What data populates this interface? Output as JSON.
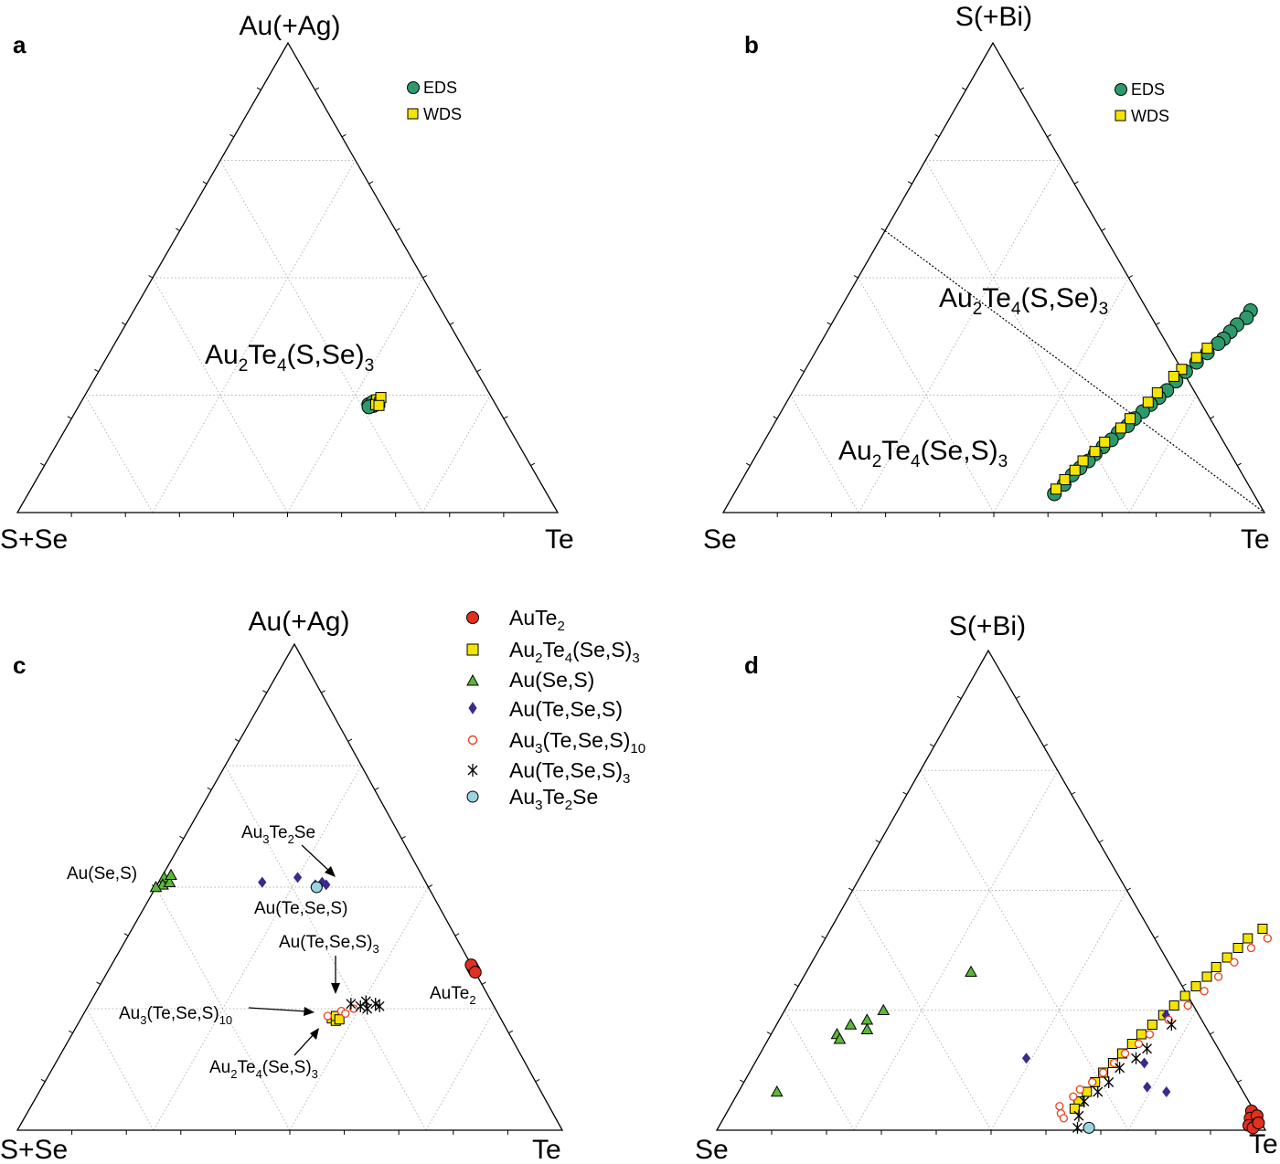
{
  "panels": {
    "a": {
      "label": "a",
      "vertices": {
        "top": "Au(+Ag)",
        "left": "S+Se",
        "right": "Te"
      },
      "annotation": {
        "base": "Au",
        "s1": "2",
        "mid": "Te",
        "s2": "4",
        "tail": "(S,Se)",
        "s3": "3"
      },
      "legend": [
        "EDS",
        "WDS"
      ]
    },
    "b": {
      "label": "b",
      "vertices": {
        "top": "S(+Bi)",
        "left": "Se",
        "right": "Te"
      },
      "annotations": [
        {
          "base": "Au",
          "s1": "2",
          "mid": "Te",
          "s2": "4",
          "tail": "(S,Se)",
          "s3": "3"
        },
        {
          "base": "Au",
          "s1": "2",
          "mid": "Te",
          "s2": "4",
          "tail": "(Se,S)",
          "s3": "3"
        }
      ],
      "legend": [
        "EDS",
        "WDS"
      ]
    },
    "c": {
      "label": "c",
      "vertices": {
        "top": "Au(+Ag)",
        "left": "S+Se",
        "right": "Te"
      },
      "annotations": {
        "au3te2se": "Au3Te2Se",
        "ause_s": "Au(Se,S)",
        "au_te_se_s": "Au(Te,Se,S)",
        "au_te_se_s_3": "Au(Te,Se,S)3",
        "aute2": "AuTe2",
        "au3_te_se_s_10": "Au3(Te,Se,S)10",
        "au2te4_se_s_3": "Au2Te4(Se,S)3"
      }
    },
    "d": {
      "label": "d",
      "vertices": {
        "top": "S(+Bi)",
        "left": "Se",
        "right": "Te"
      }
    }
  },
  "legend_c": [
    "AuTe2",
    "Au2Te4(Se,S)3",
    "Au(Se,S)",
    "Au(Te,Se,S)",
    "Au3(Te,Se,S)10",
    "Au(Te,Se,S)3",
    "Au3Te2Se"
  ],
  "colors": {
    "eds": "#2e9a6b",
    "wds": "#f5e400",
    "aute2": "#e0301e",
    "au_se_s": "#5cb83a",
    "au_te_se_s": "#3c2a8a",
    "au3_10": "#e8401c",
    "au3te2se": "#9ad4de"
  },
  "chart_data": [
    {
      "type": "scatter",
      "panel": "a",
      "plot": "ternary",
      "axes": {
        "top": "Au(+Ag)",
        "left": "S+Se",
        "right": "Te"
      },
      "series": [
        {
          "name": "EDS",
          "points": [
            {
              "top": 0.23,
              "right": 0.535
            },
            {
              "top": 0.235,
              "right": 0.54
            },
            {
              "top": 0.228,
              "right": 0.545
            },
            {
              "top": 0.232,
              "right": 0.55
            },
            {
              "top": 0.225,
              "right": 0.538
            },
            {
              "top": 0.238,
              "right": 0.548
            }
          ]
        },
        {
          "name": "WDS",
          "points": [
            {
              "top": 0.24,
              "right": 0.545
            },
            {
              "top": 0.235,
              "right": 0.553
            },
            {
              "top": 0.23,
              "right": 0.548
            },
            {
              "top": 0.245,
              "right": 0.55
            },
            {
              "top": 0.228,
              "right": 0.555
            }
          ]
        }
      ]
    },
    {
      "type": "scatter",
      "panel": "b",
      "plot": "ternary",
      "axes": {
        "top": "S(+Bi)",
        "left": "Se",
        "right": "Te"
      },
      "series": [
        {
          "name": "EDS",
          "points": [
            {
              "top": 0.43,
              "right": 0.76
            },
            {
              "top": 0.415,
              "right": 0.76
            },
            {
              "top": 0.4,
              "right": 0.75
            },
            {
              "top": 0.385,
              "right": 0.745
            },
            {
              "top": 0.37,
              "right": 0.74
            },
            {
              "top": 0.36,
              "right": 0.735
            },
            {
              "top": 0.34,
              "right": 0.725
            },
            {
              "top": 0.32,
              "right": 0.715
            },
            {
              "top": 0.3,
              "right": 0.705
            },
            {
              "top": 0.28,
              "right": 0.697
            },
            {
              "top": 0.26,
              "right": 0.69
            },
            {
              "top": 0.245,
              "right": 0.683
            },
            {
              "top": 0.23,
              "right": 0.675
            },
            {
              "top": 0.215,
              "right": 0.668
            },
            {
              "top": 0.2,
              "right": 0.66
            },
            {
              "top": 0.185,
              "right": 0.655
            },
            {
              "top": 0.17,
              "right": 0.645
            },
            {
              "top": 0.155,
              "right": 0.64
            },
            {
              "top": 0.14,
              "right": 0.632
            },
            {
              "top": 0.125,
              "right": 0.625
            },
            {
              "top": 0.11,
              "right": 0.62
            },
            {
              "top": 0.095,
              "right": 0.612
            },
            {
              "top": 0.08,
              "right": 0.605
            },
            {
              "top": 0.06,
              "right": 0.6
            },
            {
              "top": 0.04,
              "right": 0.592
            }
          ]
        },
        {
          "name": "WDS",
          "points": [
            {
              "top": 0.35,
              "right": 0.72
            },
            {
              "top": 0.33,
              "right": 0.71
            },
            {
              "top": 0.305,
              "right": 0.695
            },
            {
              "top": 0.29,
              "right": 0.688
            },
            {
              "top": 0.255,
              "right": 0.675
            },
            {
              "top": 0.235,
              "right": 0.668
            },
            {
              "top": 0.2,
              "right": 0.652
            },
            {
              "top": 0.18,
              "right": 0.645
            },
            {
              "top": 0.15,
              "right": 0.63
            },
            {
              "top": 0.13,
              "right": 0.622
            },
            {
              "top": 0.11,
              "right": 0.61
            },
            {
              "top": 0.09,
              "right": 0.605
            },
            {
              "top": 0.07,
              "right": 0.596
            },
            {
              "top": 0.05,
              "right": 0.59
            }
          ]
        }
      ],
      "reference_line": {
        "from": {
          "top": 0.6,
          "right": 0.0
        },
        "to": {
          "top": 0.0,
          "right": 1.0
        }
      }
    },
    {
      "type": "scatter",
      "panel": "c",
      "plot": "ternary",
      "axes": {
        "top": "Au(+Ag)",
        "left": "S+Se",
        "right": "Te"
      },
      "series": [
        {
          "name": "AuTe2",
          "points": [
            {
              "top": 0.335,
              "right": 0.665
            },
            {
              "top": 0.33,
              "right": 0.67
            },
            {
              "top": 0.34,
              "right": 0.66
            },
            {
              "top": 0.325,
              "right": 0.675
            }
          ]
        },
        {
          "name": "Au2Te4(Se,S)3",
          "points": [
            {
              "top": 0.23,
              "right": 0.46
            },
            {
              "top": 0.225,
              "right": 0.47
            },
            {
              "top": 0.235,
              "right": 0.465
            },
            {
              "top": 0.228,
              "right": 0.475
            }
          ]
        },
        {
          "name": "Au(Se,S)",
          "points": [
            {
              "top": 0.52,
              "right": 0.005
            },
            {
              "top": 0.505,
              "right": 0.01
            },
            {
              "top": 0.51,
              "right": 0.02
            },
            {
              "top": 0.525,
              "right": 0.015
            },
            {
              "top": 0.5,
              "right": 0.0
            }
          ]
        },
        {
          "name": "Au(Te,Se,S)",
          "points": [
            {
              "top": 0.51,
              "right": 0.19
            },
            {
              "top": 0.52,
              "right": 0.25
            },
            {
              "top": 0.505,
              "right": 0.29
            },
            {
              "top": 0.51,
              "right": 0.3
            },
            {
              "top": 0.505,
              "right": 0.31
            }
          ]
        },
        {
          "name": "Au3(Te,Se,S)10",
          "points": [
            {
              "top": 0.235,
              "right": 0.45
            },
            {
              "top": 0.245,
              "right": 0.47
            },
            {
              "top": 0.24,
              "right": 0.48
            },
            {
              "top": 0.25,
              "right": 0.49
            }
          ]
        },
        {
          "name": "Au(Te,Se,S)3",
          "points": [
            {
              "top": 0.26,
              "right": 0.48
            },
            {
              "top": 0.255,
              "right": 0.5
            },
            {
              "top": 0.265,
              "right": 0.505
            },
            {
              "top": 0.25,
              "right": 0.515
            },
            {
              "top": 0.26,
              "right": 0.525
            },
            {
              "top": 0.255,
              "right": 0.535
            }
          ]
        },
        {
          "name": "Au3Te2Se",
          "points": [
            {
              "top": 0.5,
              "right": 0.295
            }
          ]
        }
      ]
    },
    {
      "type": "scatter",
      "panel": "d",
      "plot": "ternary",
      "axes": {
        "top": "S(+Bi)",
        "left": "Se",
        "right": "Te"
      },
      "series": [
        {
          "name": "AuTe2",
          "points": [
            {
              "top": 0.04,
              "right": 0.955
            },
            {
              "top": 0.025,
              "right": 0.96
            },
            {
              "top": 0.01,
              "right": 0.965
            },
            {
              "top": 0.005,
              "right": 0.975
            },
            {
              "top": 0.03,
              "right": 0.97
            },
            {
              "top": 0.015,
              "right": 0.98
            }
          ]
        },
        {
          "name": "Au2Te4(Se,S)3",
          "points": [
            {
              "top": 0.42,
              "right": 0.787
            },
            {
              "top": 0.4,
              "right": 0.77
            },
            {
              "top": 0.38,
              "right": 0.762
            },
            {
              "top": 0.36,
              "right": 0.752
            },
            {
              "top": 0.34,
              "right": 0.742
            },
            {
              "top": 0.32,
              "right": 0.735
            },
            {
              "top": 0.3,
              "right": 0.725
            },
            {
              "top": 0.28,
              "right": 0.715
            },
            {
              "top": 0.26,
              "right": 0.705
            },
            {
              "top": 0.24,
              "right": 0.695
            },
            {
              "top": 0.22,
              "right": 0.685
            },
            {
              "top": 0.2,
              "right": 0.675
            },
            {
              "top": 0.18,
              "right": 0.668
            },
            {
              "top": 0.16,
              "right": 0.66
            },
            {
              "top": 0.14,
              "right": 0.653
            },
            {
              "top": 0.12,
              "right": 0.645
            },
            {
              "top": 0.1,
              "right": 0.64
            },
            {
              "top": 0.08,
              "right": 0.635
            },
            {
              "top": 0.06,
              "right": 0.63
            },
            {
              "top": 0.045,
              "right": 0.63
            }
          ]
        },
        {
          "name": "Au(Se,S)",
          "points": [
            {
              "top": 0.33,
              "right": 0.3
            },
            {
              "top": 0.25,
              "right": 0.18
            },
            {
              "top": 0.23,
              "right": 0.16
            },
            {
              "top": 0.21,
              "right": 0.17
            },
            {
              "top": 0.22,
              "right": 0.135
            },
            {
              "top": 0.2,
              "right": 0.12
            },
            {
              "top": 0.19,
              "right": 0.13
            },
            {
              "top": 0.08,
              "right": 0.07
            }
          ]
        },
        {
          "name": "Au(Te,Se,S)",
          "points": [
            {
              "top": 0.15,
              "right": 0.49
            },
            {
              "top": 0.24,
              "right": 0.7
            },
            {
              "top": 0.14,
              "right": 0.71
            },
            {
              "top": 0.09,
              "right": 0.74
            },
            {
              "top": 0.08,
              "right": 0.78
            }
          ]
        },
        {
          "name": "Au3(Te,Se,S)10",
          "points": [
            {
              "top": 0.4,
              "right": 0.806
            },
            {
              "top": 0.38,
              "right": 0.786
            },
            {
              "top": 0.35,
              "right": 0.77
            },
            {
              "top": 0.32,
              "right": 0.756
            },
            {
              "top": 0.29,
              "right": 0.745
            },
            {
              "top": 0.26,
              "right": 0.73
            },
            {
              "top": 0.23,
              "right": 0.71
            },
            {
              "top": 0.2,
              "right": 0.69
            },
            {
              "top": 0.18,
              "right": 0.68
            },
            {
              "top": 0.16,
              "right": 0.665
            },
            {
              "top": 0.14,
              "right": 0.655
            },
            {
              "top": 0.12,
              "right": 0.645
            },
            {
              "top": 0.1,
              "right": 0.635
            },
            {
              "top": 0.085,
              "right": 0.62
            },
            {
              "top": 0.07,
              "right": 0.615
            },
            {
              "top": 0.05,
              "right": 0.6
            },
            {
              "top": 0.035,
              "right": 0.61
            },
            {
              "top": 0.025,
              "right": 0.62
            }
          ]
        },
        {
          "name": "Au(Te,Se,S)3",
          "points": [
            {
              "top": 0.22,
              "right": 0.72
            },
            {
              "top": 0.17,
              "right": 0.7
            },
            {
              "top": 0.15,
              "right": 0.69
            },
            {
              "top": 0.13,
              "right": 0.67
            },
            {
              "top": 0.1,
              "right": 0.665
            },
            {
              "top": 0.08,
              "right": 0.655
            },
            {
              "top": 0.06,
              "right": 0.64
            },
            {
              "top": 0.03,
              "right": 0.645
            },
            {
              "top": 0.005,
              "right": 0.655
            }
          ]
        },
        {
          "name": "Au3Te2Se",
          "points": [
            {
              "top": 0.005,
              "right": 0.676
            }
          ]
        }
      ]
    }
  ]
}
